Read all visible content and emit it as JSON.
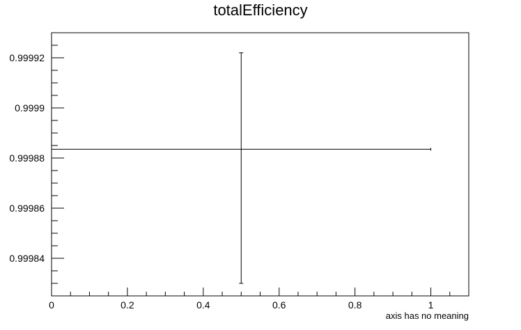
{
  "chart_data": {
    "type": "scatter",
    "title": "totalEfficiency",
    "xlabel": "axis has no meaning",
    "ylabel": "",
    "xlim": [
      0,
      1.1
    ],
    "ylim": [
      0.999825,
      0.99993
    ],
    "x_ticks": [
      0,
      0.2,
      0.4,
      0.6,
      0.8,
      1
    ],
    "x_tick_labels": [
      "0",
      "0.2",
      "0.4",
      "0.6",
      "0.8",
      "1"
    ],
    "y_ticks": [
      0.99984,
      0.99986,
      0.99988,
      0.9999,
      0.99992
    ],
    "y_tick_labels": [
      "0.99984",
      "0.99986",
      "0.99988",
      "0.9999",
      "0.99992"
    ],
    "grid": false,
    "points": [
      {
        "x": 0.5,
        "y": 0.9998835,
        "x_err": 0.5,
        "y_err_low": 5.35e-05,
        "y_err_high": 3.85e-05
      }
    ],
    "colors": {
      "axis": "#000000",
      "marker": "#000000",
      "background": "#ffffff"
    }
  }
}
